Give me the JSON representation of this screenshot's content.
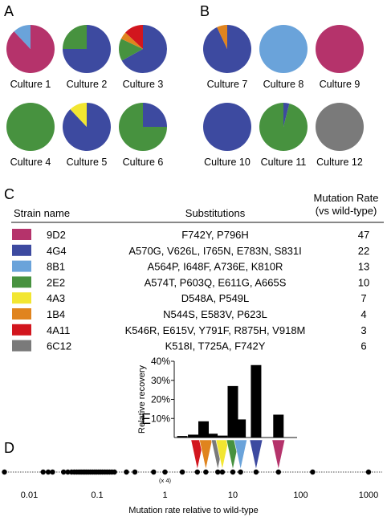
{
  "panels": {
    "a": "A",
    "b": "B",
    "c": "C",
    "d": "D",
    "e": "E"
  },
  "strain_colors": {
    "9D2": "#b5336b",
    "4G4": "#3d4aa0",
    "8B1": "#6aa3da",
    "2E2": "#47923f",
    "4A3": "#f2e631",
    "1B4": "#e0841e",
    "4A11": "#d2161e",
    "6C12": "#7a7a7a"
  },
  "table": {
    "headers": {
      "strain": "Strain name",
      "subs": "Substitutions",
      "rate_line1": "Mutation Rate",
      "rate_line2": "(vs wild-type)"
    },
    "rows": [
      {
        "strain": "9D2",
        "subs": "F742Y, P796H",
        "rate": "47"
      },
      {
        "strain": "4G4",
        "subs": "A570G, V626L, I765N, E783N, S831I",
        "rate": "22"
      },
      {
        "strain": "8B1",
        "subs": "A564P, I648F, A736E, K810R",
        "rate": "13"
      },
      {
        "strain": "2E2",
        "subs": "A574T, P603Q, E611G, A665S",
        "rate": "10"
      },
      {
        "strain": "4A3",
        "subs": "D548A, P549L",
        "rate": "7"
      },
      {
        "strain": "1B4",
        "subs": "N544S, E583V, P623L",
        "rate": "4"
      },
      {
        "strain": "4A11",
        "subs": "K546R, E615V, Y791F, R875H, V918M",
        "rate": "3"
      },
      {
        "strain": "6C12",
        "subs": "K518I, T725A, F742Y",
        "rate": "6"
      }
    ]
  },
  "chart_data": [
    {
      "type": "pie",
      "panel": "A",
      "charts": [
        {
          "label": "Culture 1",
          "slices": [
            {
              "strain": "9D2",
              "value": 0.88
            },
            {
              "strain": "8B1",
              "value": 0.12
            }
          ]
        },
        {
          "label": "Culture 2",
          "slices": [
            {
              "strain": "4G4",
              "value": 0.75
            },
            {
              "strain": "2E2",
              "value": 0.25
            }
          ]
        },
        {
          "label": "Culture 3",
          "slices": [
            {
              "strain": "4G4",
              "value": 0.67
            },
            {
              "strain": "2E2",
              "value": 0.15
            },
            {
              "strain": "1B4",
              "value": 0.05
            },
            {
              "strain": "4A11",
              "value": 0.13
            }
          ]
        },
        {
          "label": "Culture 4",
          "slices": [
            {
              "strain": "2E2",
              "value": 1.0
            }
          ]
        },
        {
          "label": "Culture 5",
          "slices": [
            {
              "strain": "4G4",
              "value": 0.88
            },
            {
              "strain": "4A3",
              "value": 0.12
            }
          ]
        },
        {
          "label": "Culture 6",
          "slices": [
            {
              "strain": "4G4",
              "value": 0.25
            },
            {
              "strain": "2E2",
              "value": 0.75
            }
          ]
        }
      ]
    },
    {
      "type": "pie",
      "panel": "B",
      "charts": [
        {
          "label": "Culture 7",
          "slices": [
            {
              "strain": "4G4",
              "value": 0.93
            },
            {
              "strain": "1B4",
              "value": 0.07
            }
          ]
        },
        {
          "label": "Culture 8",
          "slices": [
            {
              "strain": "8B1",
              "value": 1.0
            }
          ]
        },
        {
          "label": "Culture 9",
          "slices": [
            {
              "strain": "9D2",
              "value": 1.0
            }
          ]
        },
        {
          "label": "Culture 10",
          "slices": [
            {
              "strain": "4G4",
              "value": 1.0
            }
          ]
        },
        {
          "label": "Culture 11",
          "slices": [
            {
              "strain": "4G4",
              "value": 0.04
            },
            {
              "strain": "2E2",
              "value": 0.96
            }
          ]
        },
        {
          "label": "Culture 12",
          "slices": [
            {
              "strain": "6C12",
              "value": 1.0
            }
          ]
        }
      ]
    },
    {
      "type": "bar",
      "panel": "E",
      "ylabel": "Relative recovery",
      "ylim": [
        0,
        40
      ],
      "yticks": [
        "10%",
        "20%",
        "30%",
        "40%"
      ],
      "bars": [
        {
          "rate": 1.8,
          "value": 0.8,
          "strain": null
        },
        {
          "rate": 2.6,
          "value": 1.5,
          "strain": null
        },
        {
          "rate": 3.7,
          "value": 8.5,
          "strain": null
        },
        {
          "rate": 5.0,
          "value": 2.0,
          "strain": null
        },
        {
          "rate": 7.0,
          "value": 1.0,
          "strain": "4A3"
        },
        {
          "rate": 10,
          "value": 27,
          "strain": "2E2"
        },
        {
          "rate": 13,
          "value": 9.5,
          "strain": "8B1"
        },
        {
          "rate": 22,
          "value": 38,
          "strain": "4G4"
        },
        {
          "rate": 47,
          "value": 12,
          "strain": "9D2"
        }
      ],
      "triangles": [
        {
          "strain": "4A11",
          "rate": 3
        },
        {
          "strain": "1B4",
          "rate": 4
        },
        {
          "strain": "6C12",
          "rate": 6
        },
        {
          "strain": "4A3",
          "rate": 7
        },
        {
          "strain": "2E2",
          "rate": 10
        },
        {
          "strain": "8B1",
          "rate": 13
        },
        {
          "strain": "4G4",
          "rate": 22
        },
        {
          "strain": "9D2",
          "rate": 47
        }
      ]
    },
    {
      "type": "scatter",
      "panel": "D",
      "xscale": "log",
      "xlim": [
        0.004,
        1000
      ],
      "xticks": [
        {
          "value": 0.01,
          "label": "0.01"
        },
        {
          "value": 0.1,
          "label": "0.1"
        },
        {
          "value": 1,
          "label": "1"
        },
        {
          "value": 10,
          "label": "10"
        },
        {
          "value": 100,
          "label": "100"
        },
        {
          "value": 1000,
          "label": "1000"
        }
      ],
      "xlabel": "Mutation rate relative to wild-type",
      "annotation": {
        "x": 1,
        "text": "(x 4)"
      },
      "points": [
        0.0043,
        0.016,
        0.019,
        0.022,
        0.032,
        0.037,
        0.042,
        0.046,
        0.05,
        0.054,
        0.058,
        0.062,
        0.066,
        0.07,
        0.075,
        0.08,
        0.086,
        0.092,
        0.098,
        0.105,
        0.112,
        0.12,
        0.13,
        0.14,
        0.152,
        0.165,
        0.18,
        0.27,
        0.36,
        0.68,
        1,
        1.8,
        3,
        4,
        6,
        7,
        10,
        13,
        22,
        47,
        150,
        1000
      ]
    }
  ]
}
